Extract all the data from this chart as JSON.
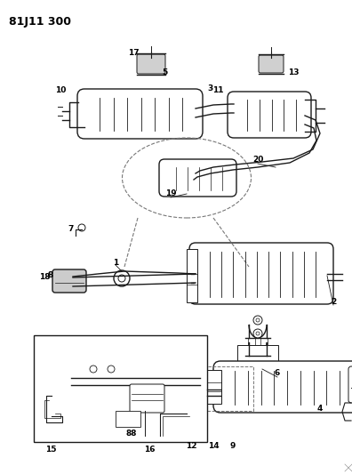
{
  "title": "81J11 300",
  "bg_color": "#ffffff",
  "line_color": "#1a1a1a",
  "title_fontsize": 9,
  "label_fontsize": 6.5,
  "fig_width": 3.96,
  "fig_height": 5.33,
  "dpi": 100,
  "xlim": [
    0,
    396
  ],
  "ylim": [
    0,
    533
  ]
}
